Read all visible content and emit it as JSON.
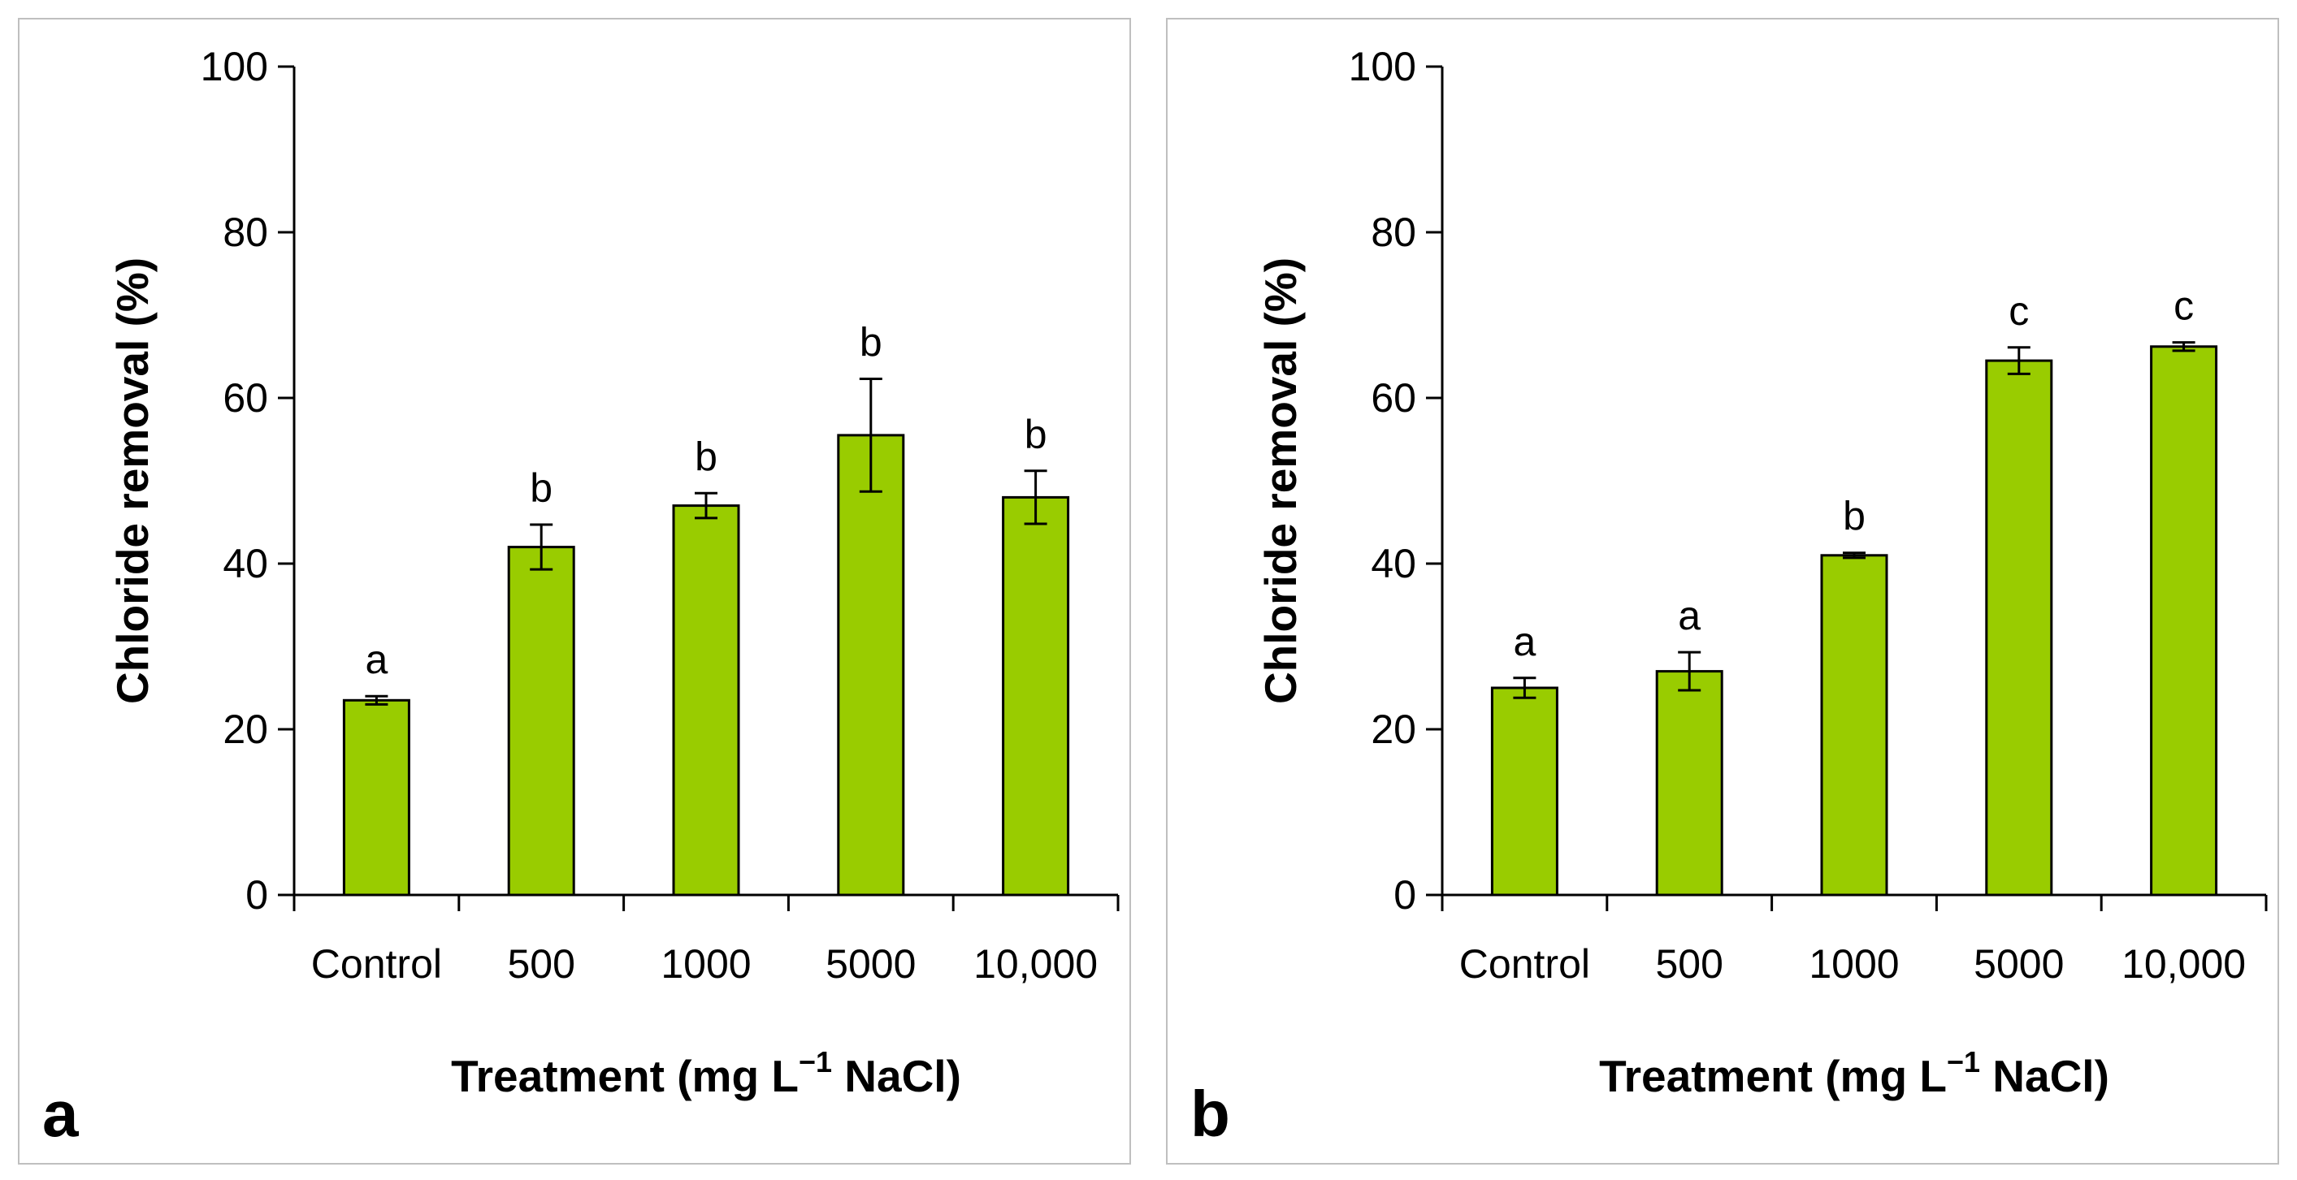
{
  "chart_data": [
    {
      "type": "bar",
      "panel_label": "a",
      "categories": [
        "Control",
        "500",
        "1000",
        "5000",
        "10,000"
      ],
      "values": [
        23.5,
        42,
        47,
        55.5,
        48
      ],
      "errors": [
        0.5,
        2.7,
        1.5,
        6.8,
        3.2
      ],
      "significance": [
        "a",
        "b",
        "b",
        "b",
        "b"
      ],
      "xlabel_main": "Treatment (mg L",
      "xlabel_sup": "−1",
      "xlabel_end": " NaCl)",
      "ylabel": "Chloride removal (%)",
      "yticks": [
        "0",
        "20",
        "40",
        "60",
        "80",
        "100"
      ],
      "ylim": [
        0,
        100
      ],
      "bar_color": "#99cc00"
    },
    {
      "type": "bar",
      "panel_label": "b",
      "categories": [
        "Control",
        "500",
        "1000",
        "5000",
        "10,000"
      ],
      "values": [
        25,
        27,
        41,
        64.5,
        66.2
      ],
      "errors": [
        1.2,
        2.3,
        0.3,
        1.6,
        0.5
      ],
      "significance": [
        "a",
        "a",
        "b",
        "c",
        "c"
      ],
      "xlabel_main": "Treatment (mg L",
      "xlabel_sup": "−1",
      "xlabel_end": " NaCl)",
      "ylabel": "Chloride removal (%)",
      "yticks": [
        "0",
        "20",
        "40",
        "60",
        "80",
        "100"
      ],
      "ylim": [
        0,
        100
      ],
      "bar_color": "#99cc00"
    }
  ]
}
